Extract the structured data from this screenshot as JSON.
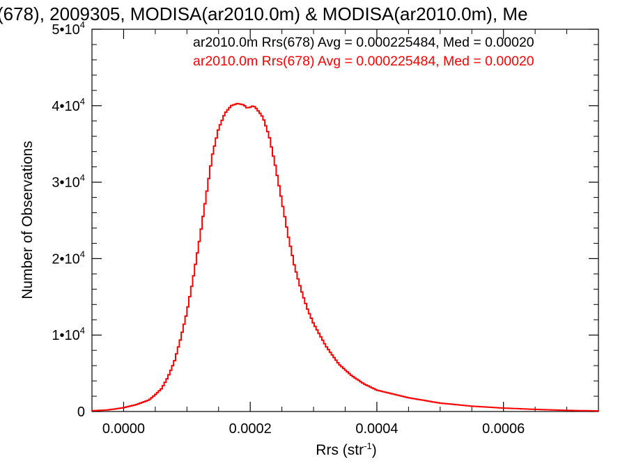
{
  "chart_data": {
    "type": "histogram",
    "title": "(678), 2009305, MODISA(ar2010.0m) & MODISA(ar2010.0m), Me",
    "xlabel": "Rrs (str",
    "xlabel_sup": "-1",
    "xlabel_close": ")",
    "ylabel": "Number of Observations",
    "xlim": [
      -5e-05,
      0.00075
    ],
    "ylim": [
      0,
      50000
    ],
    "x_ticks": [
      {
        "value": 0.0,
        "label": "0.0000"
      },
      {
        "value": 0.0002,
        "label": "0.0002"
      },
      {
        "value": 0.0004,
        "label": "0.0004"
      },
      {
        "value": 0.0006,
        "label": "0.0006"
      }
    ],
    "y_ticks": [
      {
        "value": 0,
        "label": "0",
        "sup": ""
      },
      {
        "value": 10000,
        "label": "1•10",
        "sup": "4"
      },
      {
        "value": 20000,
        "label": "2•10",
        "sup": "4"
      },
      {
        "value": 30000,
        "label": "3•10",
        "sup": "4"
      },
      {
        "value": 40000,
        "label": "4•10",
        "sup": "4"
      },
      {
        "value": 50000,
        "label": "5•10",
        "sup": "4"
      }
    ],
    "annotations": [
      {
        "text": "ar2010.0m Rrs(678) Avg = 0.000225484, Med = 0.00020",
        "color": "#000000"
      },
      {
        "text": "ar2010.0m Rrs(678) Avg = 0.000225484, Med = 0.00020",
        "color": "#ff0000"
      }
    ],
    "series": [
      {
        "color": "#ff0000",
        "x": [
          -5e-05,
          -2.5e-05,
          0.0,
          2e-05,
          4e-05,
          5e-05,
          6e-05,
          7e-05,
          8e-05,
          9e-05,
          0.0001,
          0.00011,
          0.00012,
          0.00013,
          0.00014,
          0.00015,
          0.00016,
          0.00017,
          0.00018,
          0.00019,
          0.000195,
          0.0002,
          0.000205,
          0.00021,
          0.00022,
          0.00023,
          0.00024,
          0.00025,
          0.00026,
          0.00027,
          0.00028,
          0.00029,
          0.0003,
          0.00032,
          0.00034,
          0.00036,
          0.00038,
          0.0004,
          0.00045,
          0.0005,
          0.00055,
          0.0006,
          0.00065,
          0.0007,
          0.00075
        ],
        "y": [
          100,
          200,
          500,
          900,
          1500,
          2200,
          3000,
          4500,
          6500,
          9500,
          13000,
          17500,
          22500,
          28000,
          33500,
          37000,
          39000,
          40000,
          40300,
          40100,
          39700,
          39800,
          40000,
          39600,
          38500,
          36000,
          32000,
          27500,
          23000,
          19000,
          16000,
          13500,
          11500,
          8500,
          6200,
          4700,
          3600,
          2800,
          1800,
          1100,
          700,
          450,
          280,
          150,
          80
        ]
      }
    ]
  }
}
